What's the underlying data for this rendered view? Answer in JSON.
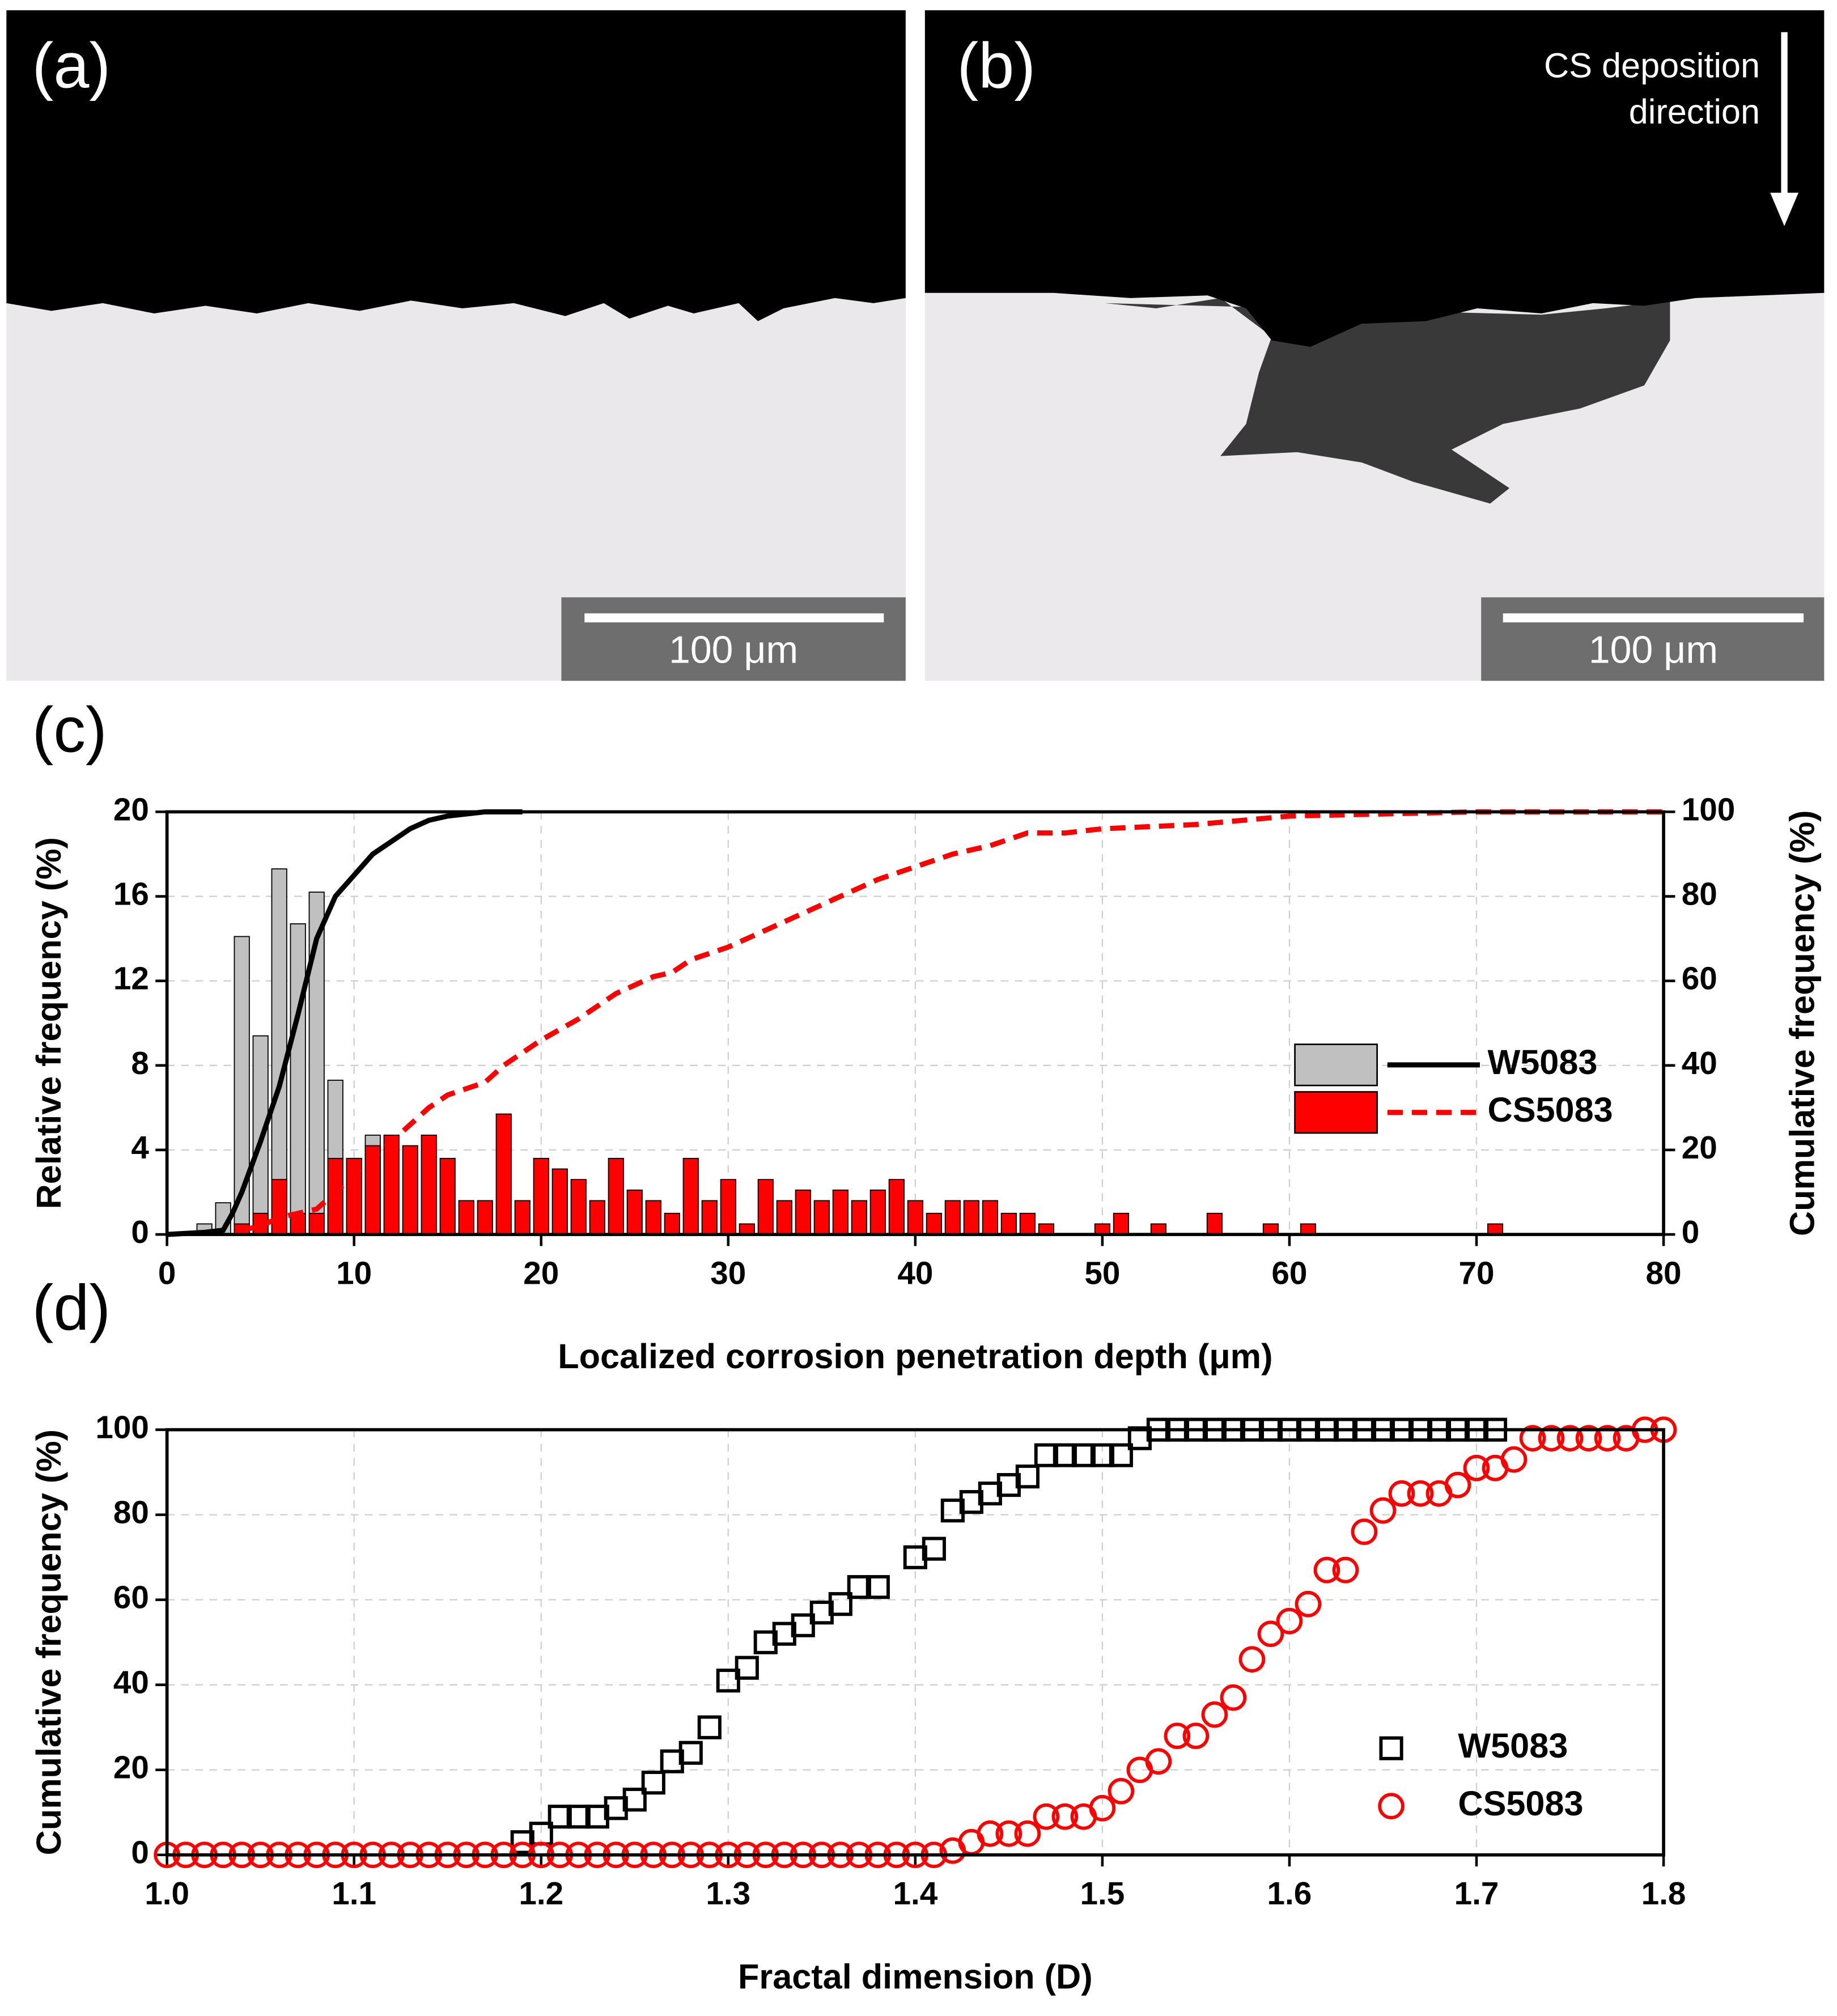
{
  "panel_labels": [
    "(a)",
    "(b)",
    "(c)",
    "(d)"
  ],
  "micrographs": [
    {
      "scale_bar": "100 μm"
    },
    {
      "scale_bar": "100 μm",
      "annotation_lines": [
        "CS deposition",
        "direction"
      ]
    }
  ],
  "chart_data": [
    {
      "type": "bar",
      "xlabel": "Localized corrosion penetration depth (μm)",
      "ylabel": "Relative frequency (%)",
      "y2label": "Cumulative frequency (%)",
      "xlim": [
        0,
        80
      ],
      "xticks": [
        0,
        10,
        20,
        30,
        40,
        50,
        60,
        70,
        80
      ],
      "ylim": [
        0,
        20
      ],
      "yticks": [
        0,
        4,
        8,
        12,
        16,
        20
      ],
      "y2lim": [
        0,
        100
      ],
      "y2ticks": [
        0,
        20,
        40,
        60,
        80,
        100
      ],
      "grid": true,
      "legend": "right",
      "series": [
        {
          "name": "W5083",
          "color": "#c0c0c0",
          "line_color": "#000000",
          "line_style": "solid",
          "x": [
            2,
            3,
            4,
            5,
            6,
            7,
            8,
            9,
            10,
            11
          ],
          "values": [
            0.5,
            1.5,
            14.1,
            9.4,
            17.3,
            14.7,
            16.2,
            7.3,
            3.6,
            4.7
          ],
          "cumulative_x": [
            0,
            2,
            3,
            3.5,
            4,
            5,
            6,
            7,
            8,
            9,
            10,
            11,
            12,
            13,
            14,
            15,
            17,
            19
          ],
          "cumulative": [
            0,
            0.5,
            1,
            5,
            10,
            22,
            35,
            52,
            70,
            80,
            85,
            90,
            93,
            96,
            98,
            99,
            100,
            100
          ]
        },
        {
          "name": "CS5083",
          "color": "#ff0000",
          "line_color": "#ff0000",
          "line_style": "dashed",
          "x": [
            4,
            5,
            6,
            7,
            8,
            9,
            10,
            11,
            12,
            13,
            14,
            15,
            16,
            17,
            18,
            19,
            20,
            21,
            22,
            23,
            24,
            25,
            26,
            27,
            28,
            29,
            30,
            31,
            32,
            33,
            34,
            35,
            36,
            37,
            38,
            39,
            40,
            41,
            42,
            43,
            44,
            45,
            46,
            47,
            50,
            51,
            53,
            56,
            59,
            61,
            71
          ],
          "values": [
            0.5,
            1.0,
            2.6,
            1.0,
            1.0,
            3.6,
            3.6,
            4.2,
            4.7,
            4.2,
            4.7,
            3.6,
            1.6,
            1.6,
            5.7,
            1.6,
            3.6,
            3.1,
            2.6,
            1.6,
            3.6,
            2.1,
            1.6,
            1.0,
            3.6,
            1.6,
            2.6,
            0.5,
            2.6,
            1.6,
            2.1,
            1.6,
            2.1,
            1.6,
            2.1,
            2.6,
            1.6,
            1.0,
            1.6,
            1.6,
            1.6,
            1.0,
            1.0,
            0.5,
            0.5,
            1.0,
            0.5,
            1.0,
            0.5,
            0.5,
            0.5
          ],
          "cumulative_x": [
            4,
            5,
            6,
            7,
            8,
            9,
            10,
            11,
            12,
            13,
            14,
            15,
            17,
            18,
            20,
            22,
            24,
            26,
            27,
            28,
            30,
            32,
            34,
            36,
            38,
            40,
            42,
            44,
            46,
            48,
            50,
            55,
            60,
            70,
            80
          ],
          "cumulative": [
            1,
            2,
            4,
            5,
            6,
            10,
            14,
            18,
            22,
            26,
            30,
            33,
            36,
            40,
            46,
            51,
            57,
            61,
            62,
            65,
            68,
            72,
            76,
            80,
            84,
            87,
            90,
            92,
            95,
            95,
            96,
            97,
            99,
            100,
            100
          ]
        }
      ]
    },
    {
      "type": "scatter",
      "xlabel": "Fractal dimension (D)",
      "ylabel": "Cumulative frequency (%)",
      "xlim": [
        1,
        1.8
      ],
      "xticks": [
        {
          "value": 1,
          "label": "1.0"
        },
        1.1,
        1.2,
        1.3,
        1.4,
        1.5,
        1.6,
        1.7,
        1.8
      ],
      "ylim": [
        0,
        100
      ],
      "yticks": [
        0,
        20,
        40,
        60,
        80,
        100
      ],
      "grid": true,
      "legend": "lower right",
      "series": [
        {
          "name": "W5083",
          "color": "#000000",
          "marker": "square",
          "x": [
            1.19,
            1.2,
            1.21,
            1.22,
            1.23,
            1.24,
            1.25,
            1.26,
            1.27,
            1.28,
            1.29,
            1.3,
            1.31,
            1.32,
            1.33,
            1.34,
            1.35,
            1.36,
            1.37,
            1.38,
            1.4,
            1.41,
            1.42,
            1.43,
            1.44,
            1.45,
            1.46,
            1.47,
            1.48,
            1.49,
            1.5,
            1.51,
            1.52,
            1.53,
            1.54,
            1.55,
            1.56,
            1.57,
            1.58,
            1.59,
            1.6,
            1.61,
            1.62,
            1.63,
            1.64,
            1.65,
            1.66,
            1.67,
            1.68,
            1.69,
            1.7,
            1.71
          ],
          "values": [
            3,
            5,
            9,
            9,
            9,
            11,
            13,
            17,
            22,
            24,
            30,
            41,
            44,
            50,
            52,
            54,
            57,
            59,
            63,
            63,
            70,
            72,
            81,
            83,
            85,
            87,
            89,
            94,
            94,
            94,
            94,
            94,
            98,
            100,
            100,
            100,
            100,
            100,
            100,
            100,
            100,
            100,
            100,
            100,
            100,
            100,
            100,
            100,
            100,
            100,
            100,
            100
          ]
        },
        {
          "name": "CS5083",
          "color": "#ff0000",
          "marker": "circle",
          "x": [
            1.0,
            1.01,
            1.02,
            1.03,
            1.04,
            1.05,
            1.06,
            1.07,
            1.08,
            1.09,
            1.1,
            1.11,
            1.12,
            1.13,
            1.14,
            1.15,
            1.16,
            1.17,
            1.18,
            1.19,
            1.2,
            1.21,
            1.22,
            1.23,
            1.24,
            1.25,
            1.26,
            1.27,
            1.28,
            1.29,
            1.3,
            1.31,
            1.32,
            1.33,
            1.34,
            1.35,
            1.36,
            1.37,
            1.38,
            1.39,
            1.4,
            1.41,
            1.42,
            1.43,
            1.44,
            1.45,
            1.46,
            1.47,
            1.48,
            1.49,
            1.5,
            1.51,
            1.52,
            1.53,
            1.54,
            1.55,
            1.56,
            1.57,
            1.58,
            1.59,
            1.6,
            1.61,
            1.62,
            1.63,
            1.64,
            1.65,
            1.66,
            1.67,
            1.68,
            1.69,
            1.7,
            1.71,
            1.72,
            1.73,
            1.74,
            1.75,
            1.76,
            1.77,
            1.78,
            1.79,
            1.8
          ],
          "values": [
            0,
            0,
            0,
            0,
            0,
            0,
            0,
            0,
            0,
            0,
            0,
            0,
            0,
            0,
            0,
            0,
            0,
            0,
            0,
            0,
            0,
            0,
            0,
            0,
            0,
            0,
            0,
            0,
            0,
            0,
            0,
            0,
            0,
            0,
            0,
            0,
            0,
            0,
            0,
            0,
            0,
            0,
            1,
            3,
            5,
            5,
            5,
            9,
            9,
            9,
            11,
            15,
            20,
            22,
            28,
            28,
            33,
            37,
            46,
            52,
            55,
            59,
            67,
            67,
            76,
            81,
            85,
            85,
            85,
            87,
            91,
            91,
            93,
            98,
            98,
            98,
            98,
            98,
            98,
            100,
            100
          ]
        }
      ]
    }
  ]
}
